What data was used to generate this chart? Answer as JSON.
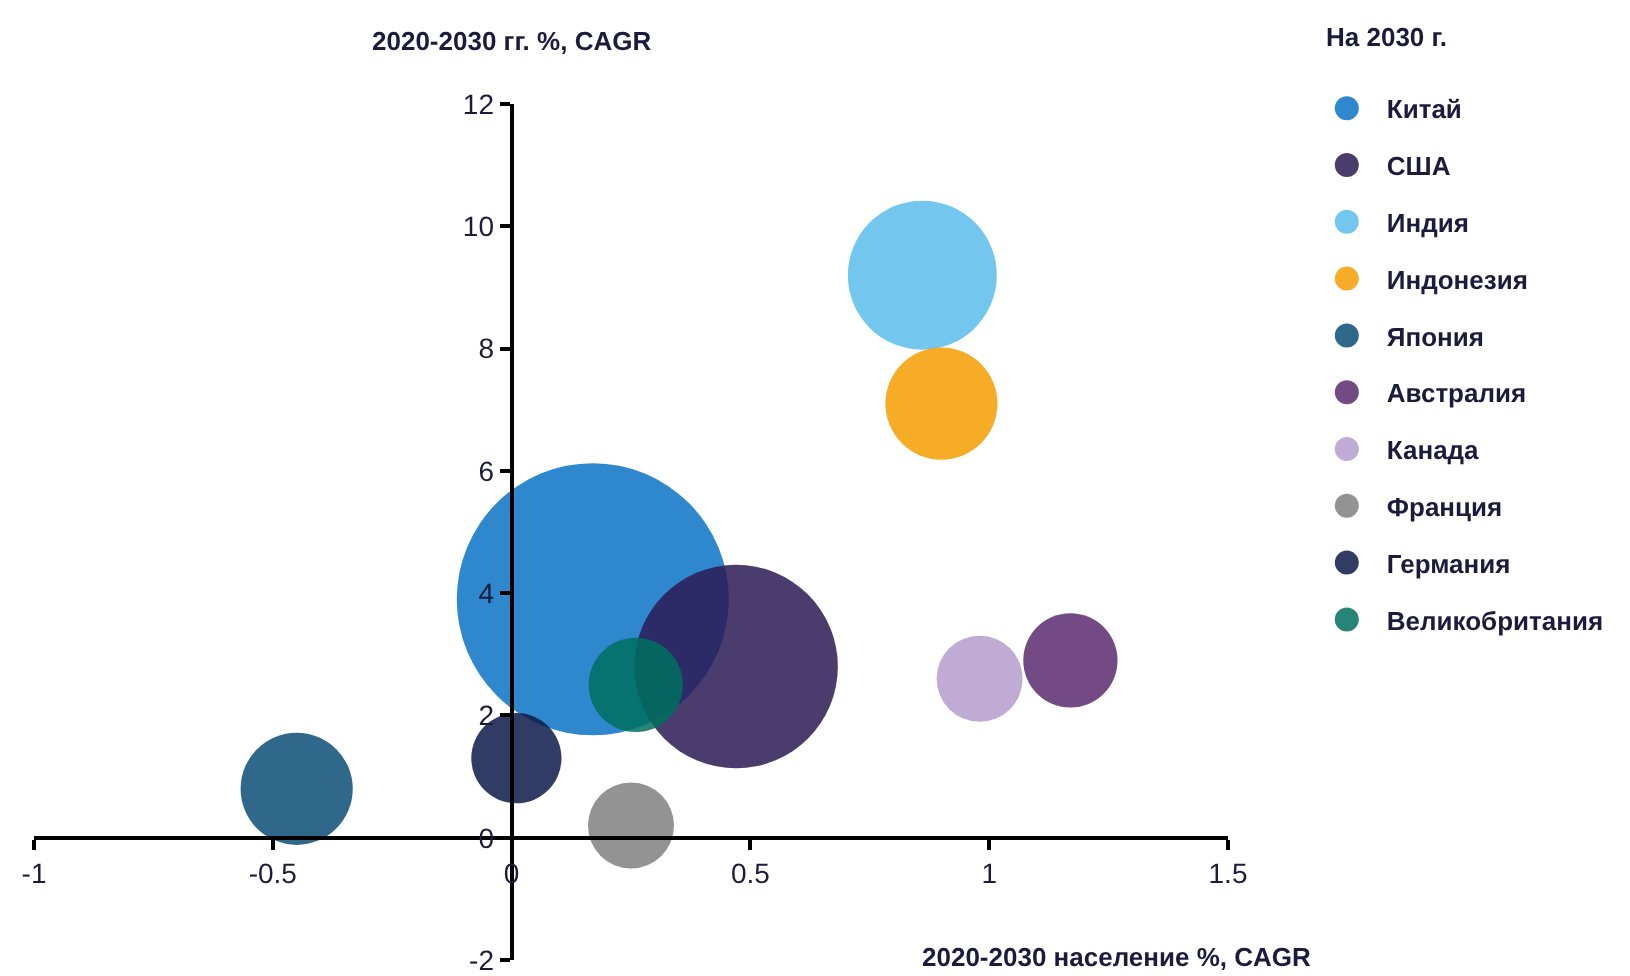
{
  "chart_data": {
    "type": "bubble",
    "xlabel": "2020-2030 население %, CAGR",
    "ylabel": "2020-2030 гг. %, CAGR",
    "legend_title": "На 2030 г.",
    "legend": "top right",
    "xlim": [
      -1,
      1.5
    ],
    "xticks": [
      -1,
      -0.5,
      0,
      0.5,
      1,
      1.5
    ],
    "ylim": [
      -2,
      12
    ],
    "yticks": [
      -2,
      0,
      2,
      4,
      6,
      8,
      10,
      12
    ],
    "series": [
      {
        "name": "Китай",
        "color": "#0b72c4",
        "x": [
          0.17
        ],
        "values": [
          3.9
        ],
        "sizes": [
          1
        ]
      },
      {
        "name": "США",
        "color": "#2b1a55",
        "x": [
          0.47
        ],
        "values": [
          2.8
        ],
        "sizes": [
          0.56
        ]
      },
      {
        "name": "Индия",
        "color": "#5bbdeb",
        "x": [
          0.86
        ],
        "values": [
          9.2
        ],
        "sizes": [
          0.3
        ]
      },
      {
        "name": "Индонезия",
        "color": "#f59d00",
        "x": [
          0.9
        ],
        "values": [
          7.1
        ],
        "sizes": [
          0.17
        ]
      },
      {
        "name": "Япония",
        "color": "#0c4d78",
        "x": [
          -0.45
        ],
        "values": [
          0.8
        ],
        "sizes": [
          0.17
        ]
      },
      {
        "name": "Австралия",
        "color": "#5c2a6e",
        "x": [
          1.17
        ],
        "values": [
          2.9
        ],
        "sizes": [
          0.12
        ]
      },
      {
        "name": "Канада",
        "color": "#b59ccc",
        "x": [
          0.98
        ],
        "values": [
          2.6
        ],
        "sizes": [
          0.1
        ]
      },
      {
        "name": "Франция",
        "color": "#808080",
        "x": [
          0.25
        ],
        "values": [
          0.2
        ],
        "sizes": [
          0.1
        ]
      },
      {
        "name": "Германия",
        "color": "#0d1a4a",
        "x": [
          0.01
        ],
        "values": [
          1.3
        ],
        "sizes": [
          0.11
        ]
      },
      {
        "name": "Великобритания",
        "color": "#00705f",
        "x": [
          0.26
        ],
        "values": [
          2.5
        ],
        "sizes": [
          0.12
        ]
      }
    ]
  }
}
